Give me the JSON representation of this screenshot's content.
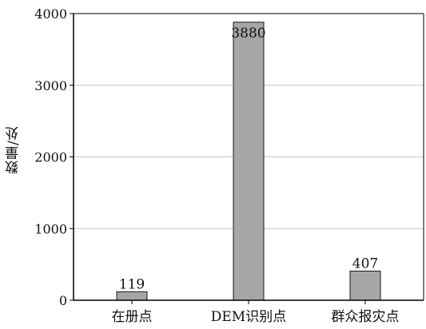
{
  "chart_data": {
    "type": "bar",
    "title": "",
    "xlabel": "",
    "ylabel": "数量/处",
    "categories": [
      "在册点",
      "DEM识别点",
      "群众报灾点"
    ],
    "values": [
      119,
      3880,
      407
    ],
    "data_labels": [
      "119",
      "3880",
      "407"
    ],
    "ylim": [
      0,
      4000
    ],
    "yticks": [
      0,
      1000,
      2000,
      3000,
      4000
    ],
    "ytick_labels": [
      "0",
      "1000",
      "2000",
      "3000",
      "4000"
    ],
    "grid": true,
    "legend": "none",
    "bar_color": "#a6a6a6",
    "bar_edge_color": "#1a1a1a",
    "grid_color": "#c8c8c8",
    "axis_color": "#000000"
  }
}
